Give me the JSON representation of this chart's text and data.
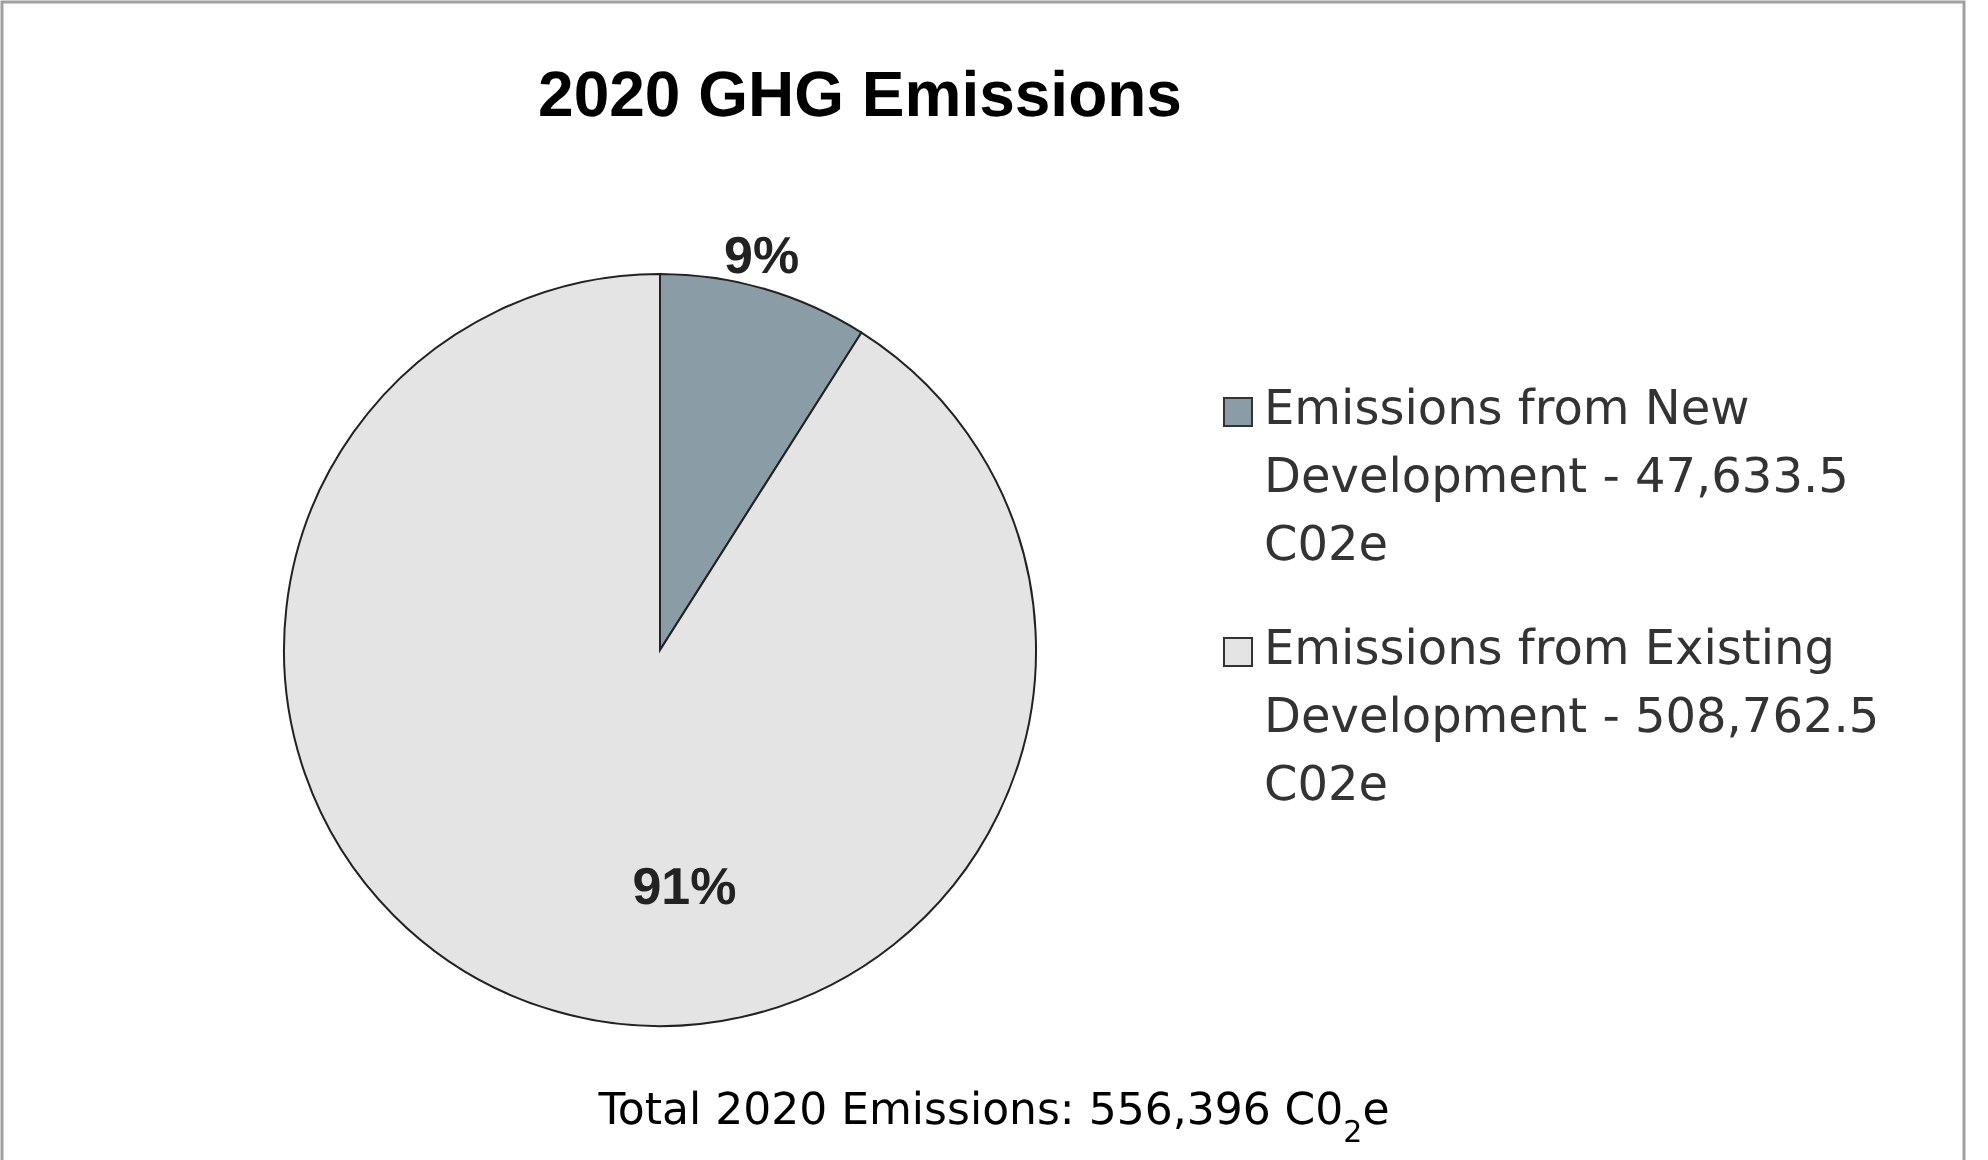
{
  "chart_data": {
    "type": "pie",
    "title": "2020 GHG Emissions",
    "categories": [
      "Emissions from New Development - 47,633.5 C02e",
      "Emissions from Existing Development - 508,762.5 C02e"
    ],
    "values": [
      9,
      91
    ],
    "colors": [
      "#8a9ca6",
      "#e4e4e4"
    ],
    "value_labels": [
      "9%",
      "91%"
    ],
    "legend": "right",
    "annotations": [
      "Total 2020 Emissions: 556,396 C0$_{2}$e"
    ]
  }
}
